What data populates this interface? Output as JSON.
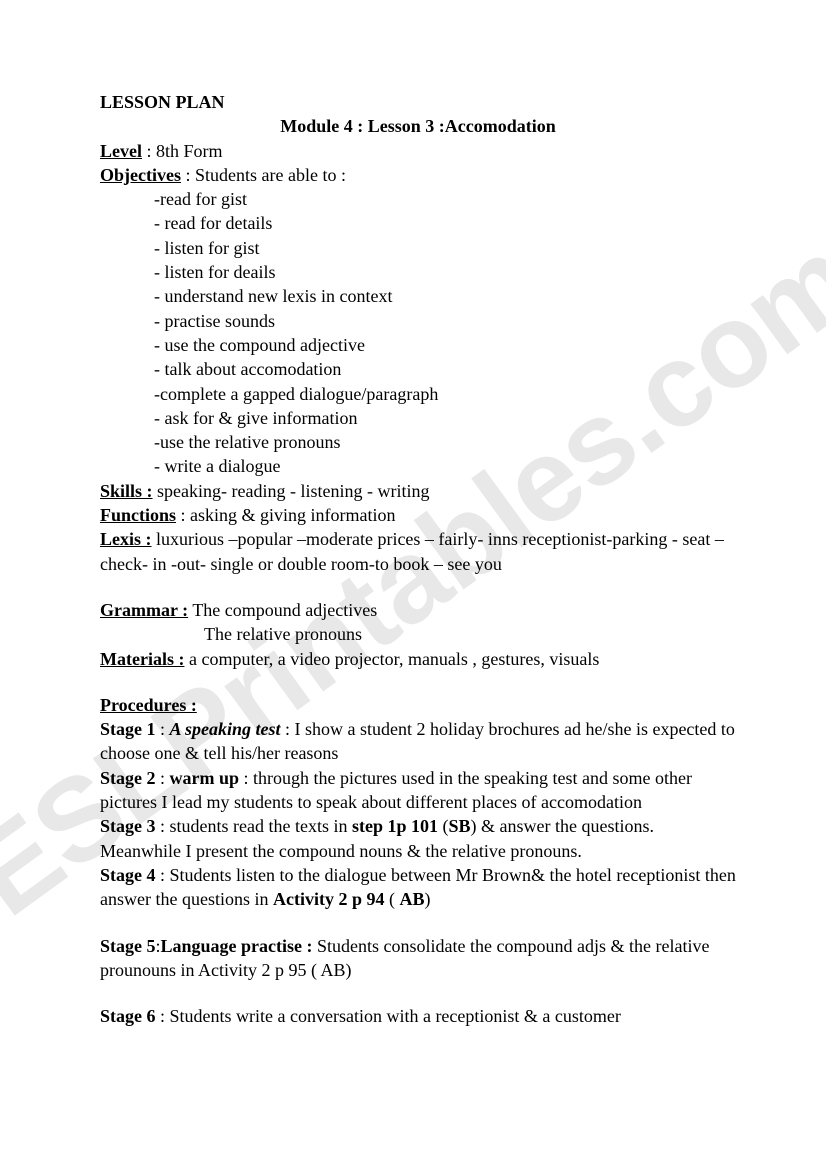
{
  "watermark": "ESLPrintables.com",
  "heading": "LESSON PLAN",
  "module_line": "Module 4 : Lesson 3 :Accomodation",
  "level_label": "Level",
  "level_value": " : 8th Form",
  "objectives_label": "Objectives",
  "objectives_intro": " : Students are able to :",
  "objectives": [
    "-read for gist",
    "- read for details",
    "- listen for gist",
    "- listen for deails",
    "- understand new lexis in context",
    "- practise sounds",
    "- use the compound adjective",
    "- talk about accomodation",
    "-complete a gapped dialogue/paragraph",
    "- ask for & give information",
    "-use the relative pronouns",
    "- write a dialogue"
  ],
  "skills_label": "Skills :",
  "skills_value": "   speaking-    reading  - listening - writing",
  "functions_label": "Functions",
  "functions_value": " : asking  & giving information",
  "lexis_label": "Lexis :",
  "lexis_value": "  luxurious –popular –moderate prices – fairly- inns receptionist-parking - seat – check- in -out- single or double room-to book – see you",
  "grammar_label": "Grammar :",
  "grammar_value1": " The compound adjectives",
  "grammar_value2": "The relative pronouns",
  "materials_label": "Materials :",
  "materials_value": " a computer, a video projector, manuals , gestures, visuals",
  "procedures_label": "Procedures :",
  "stages": {
    "s1_label": "Stage 1",
    "s1_title": "A speaking test",
    "s1_body": " : I show a student 2 holiday brochures ad he/she is expected to choose one & tell his/her reasons",
    "s2_label": "Stage 2",
    "s2_title": "warm up",
    "s2_body": " : through the pictures used in the speaking test and some other pictures I lead my students to  speak about different places of accomodation",
    "s3_label": "Stage 3",
    "s3_body_a": " : students read the texts in ",
    "s3_step": "step 1p 101",
    "s3_body_b": " (",
    "s3_sb": "SB",
    "s3_body_c": ") & answer the questions. Meanwhile I present the compound nouns & the relative pronouns.",
    "s4_label": "Stage 4",
    "s4_body_a": " : Students  listen to the dialogue between Mr Brown&  the hotel receptionist  then answer the questions in ",
    "s4_act": "Activity 2 p 94",
    "s4_body_b": " ( ",
    "s4_ab": "AB",
    "s4_body_c": ")",
    "s5_label": "Stage 5",
    "s5_title": "Language practise :",
    "s5_body": " Students consolidate the  compound adjs & the relative prounouns in Activity 2 p 95 ( AB)",
    "s6_label": "Stage 6",
    "s6_body": " : Students write  a conversation with a  receptionist & a customer"
  }
}
